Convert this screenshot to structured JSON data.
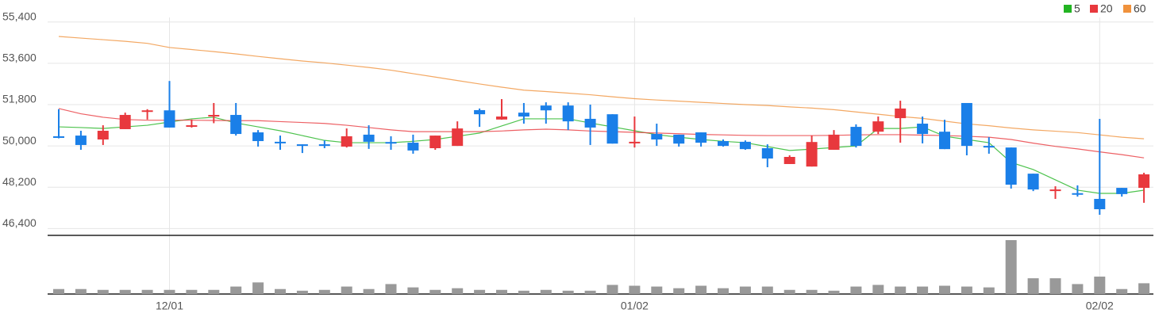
{
  "chart_data": {
    "type": "candlestick",
    "categories": [
      null,
      null,
      null,
      null,
      null,
      "12/01",
      null,
      null,
      null,
      null,
      null,
      null,
      null,
      null,
      null,
      null,
      null,
      null,
      null,
      null,
      null,
      null,
      null,
      null,
      null,
      null,
      "01/02",
      null,
      null,
      null,
      null,
      null,
      null,
      null,
      null,
      null,
      null,
      null,
      null,
      null,
      null,
      null,
      null,
      null,
      null,
      null,
      null,
      "02/02",
      null,
      null
    ],
    "open": [
      50420,
      50450,
      50280,
      50730,
      51500,
      51550,
      50860,
      51300,
      51350,
      50590,
      50180,
      50070,
      50070,
      49970,
      50490,
      50170,
      50140,
      49900,
      50000,
      51560,
      51150,
      51450,
      51760,
      51760,
      51180,
      51380,
      50110,
      50520,
      50490,
      50590,
      50210,
      50180,
      49900,
      49210,
      49100,
      49830,
      50830,
      50620,
      51210,
      50970,
      50620,
      51870,
      50000,
      49930,
      48790,
      48070,
      47940,
      47690,
      48170,
      48170
    ],
    "high": [
      51600,
      50660,
      50900,
      51450,
      51600,
      52830,
      51150,
      51870,
      51870,
      50690,
      50450,
      50070,
      50240,
      50760,
      50900,
      50420,
      50490,
      50450,
      51070,
      51630,
      52040,
      51870,
      51900,
      51900,
      51800,
      51380,
      51280,
      50970,
      50490,
      50590,
      50280,
      50240,
      50070,
      49590,
      50450,
      50690,
      50940,
      51280,
      51970,
      51280,
      51140,
      51870,
      50380,
      49930,
      48790,
      48240,
      48280,
      51180,
      48170,
      48830
    ],
    "low": [
      50330,
      49830,
      50040,
      50730,
      51150,
      50800,
      50800,
      50990,
      50450,
      49970,
      49830,
      49690,
      49900,
      49930,
      49870,
      49830,
      49660,
      49830,
      50000,
      50830,
      51140,
      50970,
      50970,
      50690,
      50040,
      50100,
      49930,
      50000,
      49970,
      49970,
      49970,
      49830,
      49070,
      49210,
      49100,
      49830,
      49930,
      50520,
      50140,
      50110,
      49860,
      49590,
      49660,
      48140,
      48030,
      47690,
      47790,
      47000,
      47790,
      47520
    ],
    "close": [
      50350,
      50040,
      50660,
      51350,
      51550,
      50800,
      50900,
      51350,
      50520,
      50210,
      50140,
      50000,
      50000,
      50420,
      50180,
      50100,
      49800,
      50450,
      50760,
      51380,
      51280,
      51280,
      51550,
      51070,
      50800,
      50100,
      50180,
      50280,
      50100,
      50140,
      50000,
      49860,
      49450,
      49520,
      50170,
      50490,
      50000,
      51070,
      51630,
      50520,
      49860,
      50000,
      49930,
      48310,
      48100,
      48100,
      47900,
      47240,
      47900,
      48760
    ],
    "volume": [
      6,
      6,
      5,
      5,
      5,
      5,
      5,
      5,
      9,
      14,
      6,
      4,
      5,
      9,
      6,
      12,
      8,
      5,
      7,
      5,
      5,
      4,
      5,
      4,
      4,
      11,
      10,
      9,
      7,
      10,
      7,
      9,
      9,
      5,
      5,
      4,
      9,
      11,
      9,
      9,
      10,
      9,
      8,
      65,
      19,
      19,
      12,
      21,
      6,
      13
    ],
    "up_color": "#e8383d",
    "down_color": "#1a7fe8",
    "volume_color": "#999999",
    "series": [
      {
        "name": "5",
        "color": "#22b422",
        "values": [
          50830,
          50800,
          50760,
          50830,
          50900,
          51040,
          51180,
          51250,
          51000,
          50830,
          50660,
          50450,
          50240,
          50140,
          50140,
          50140,
          50200,
          50280,
          50420,
          50560,
          50870,
          51180,
          51180,
          51180,
          51000,
          50830,
          50660,
          50490,
          50380,
          50280,
          50200,
          50140,
          49970,
          49800,
          49860,
          49930,
          50000,
          50760,
          50760,
          50830,
          50420,
          50280,
          50140,
          49280,
          48970,
          48520,
          48070,
          47930,
          47930,
          48070
        ]
      },
      {
        "name": "20",
        "color": "#e8383d",
        "values": [
          51630,
          51400,
          51250,
          51150,
          51120,
          51120,
          51120,
          51110,
          51100,
          51100,
          51060,
          51020,
          50980,
          50900,
          50800,
          50700,
          50620,
          50620,
          50620,
          50620,
          50650,
          50700,
          50730,
          50700,
          50650,
          50620,
          50590,
          50560,
          50530,
          50500,
          50480,
          50460,
          50450,
          50450,
          50450,
          50460,
          50480,
          50490,
          50490,
          50470,
          50450,
          50420,
          50380,
          50280,
          50120,
          49980,
          49870,
          49740,
          49620,
          49480
        ]
      },
      {
        "name": "60",
        "color": "#f0923c",
        "values": [
          54770,
          54700,
          54630,
          54560,
          54470,
          54290,
          54200,
          54110,
          54010,
          53900,
          53800,
          53700,
          53620,
          53520,
          53420,
          53300,
          53150,
          53000,
          52850,
          52700,
          52560,
          52430,
          52370,
          52300,
          52230,
          52140,
          52060,
          52000,
          51950,
          51900,
          51850,
          51800,
          51760,
          51700,
          51650,
          51580,
          51480,
          51380,
          51280,
          51200,
          51080,
          50960,
          50880,
          50780,
          50700,
          50640,
          50580,
          50480,
          50380,
          50310
        ]
      }
    ],
    "ylim": [
      46100,
      55600
    ],
    "yticks": [
      {
        "value": 46400,
        "label": "46,400"
      },
      {
        "value": 48200,
        "label": "48,200"
      },
      {
        "value": 50000,
        "label": "50,000"
      },
      {
        "value": 51800,
        "label": "51,800"
      },
      {
        "value": 53600,
        "label": "53,600"
      },
      {
        "value": 55400,
        "label": "55,400"
      }
    ],
    "grid": true
  }
}
